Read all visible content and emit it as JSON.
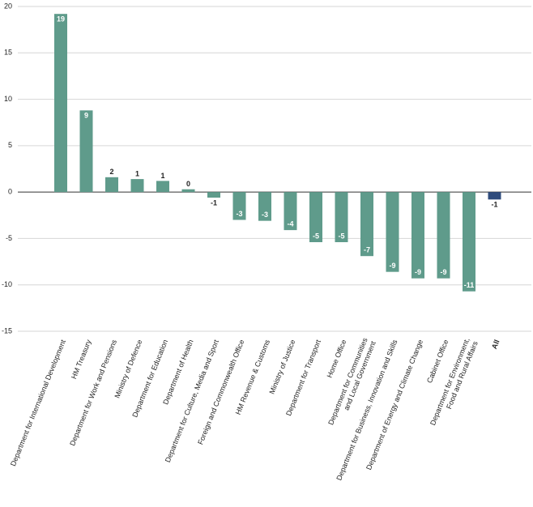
{
  "chart_data": {
    "type": "bar",
    "categories": [
      "Department for International Development",
      "HM Treasury",
      "Department for Work and Pensions",
      "Ministry of Defence",
      "Department for Education",
      "Department of Health",
      "Department for Culture, Media and Sport",
      "Foreign and Commonwealth Office",
      "HM Revenue & Customs",
      "Ministry of Justice",
      "Department for Transport",
      "Home Office",
      "Department for Communities\nand Local Government",
      "Department for Business, Innovation and Skills",
      "Department of Energy and Climate Change",
      "Cabinet Office",
      "Department for Environment,\nFood and Rural Affairs",
      "All"
    ],
    "series": [
      {
        "colors": [
          "#5f9b8b",
          "#5f9b8b",
          "#5f9b8b",
          "#5f9b8b",
          "#5f9b8b",
          "#5f9b8b",
          "#5f9b8b",
          "#5f9b8b",
          "#5f9b8b",
          "#5f9b8b",
          "#5f9b8b",
          "#5f9b8b",
          "#5f9b8b",
          "#5f9b8b",
          "#5f9b8b",
          "#5f9b8b",
          "#5f9b8b",
          "#2f4b7c"
        ],
        "values": [
          19.2,
          8.8,
          1.6,
          1.4,
          1.2,
          0.3,
          -0.6,
          -3.0,
          -3.1,
          -4.1,
          -5.4,
          -5.4,
          -6.9,
          -8.6,
          -9.3,
          -9.3,
          -10.7,
          -0.8
        ],
        "value_labels": [
          "19",
          "9",
          "2",
          "1",
          "1",
          "0",
          "-1",
          "-3",
          "-3",
          "-4",
          "-5",
          "-5",
          "-7",
          "-9",
          "-9",
          "-9",
          "-11",
          "-1"
        ]
      }
    ],
    "ylim": [
      -15,
      20
    ],
    "yticks": [
      -15,
      -10,
      -5,
      0,
      5,
      10,
      15,
      20
    ],
    "grid": true
  }
}
